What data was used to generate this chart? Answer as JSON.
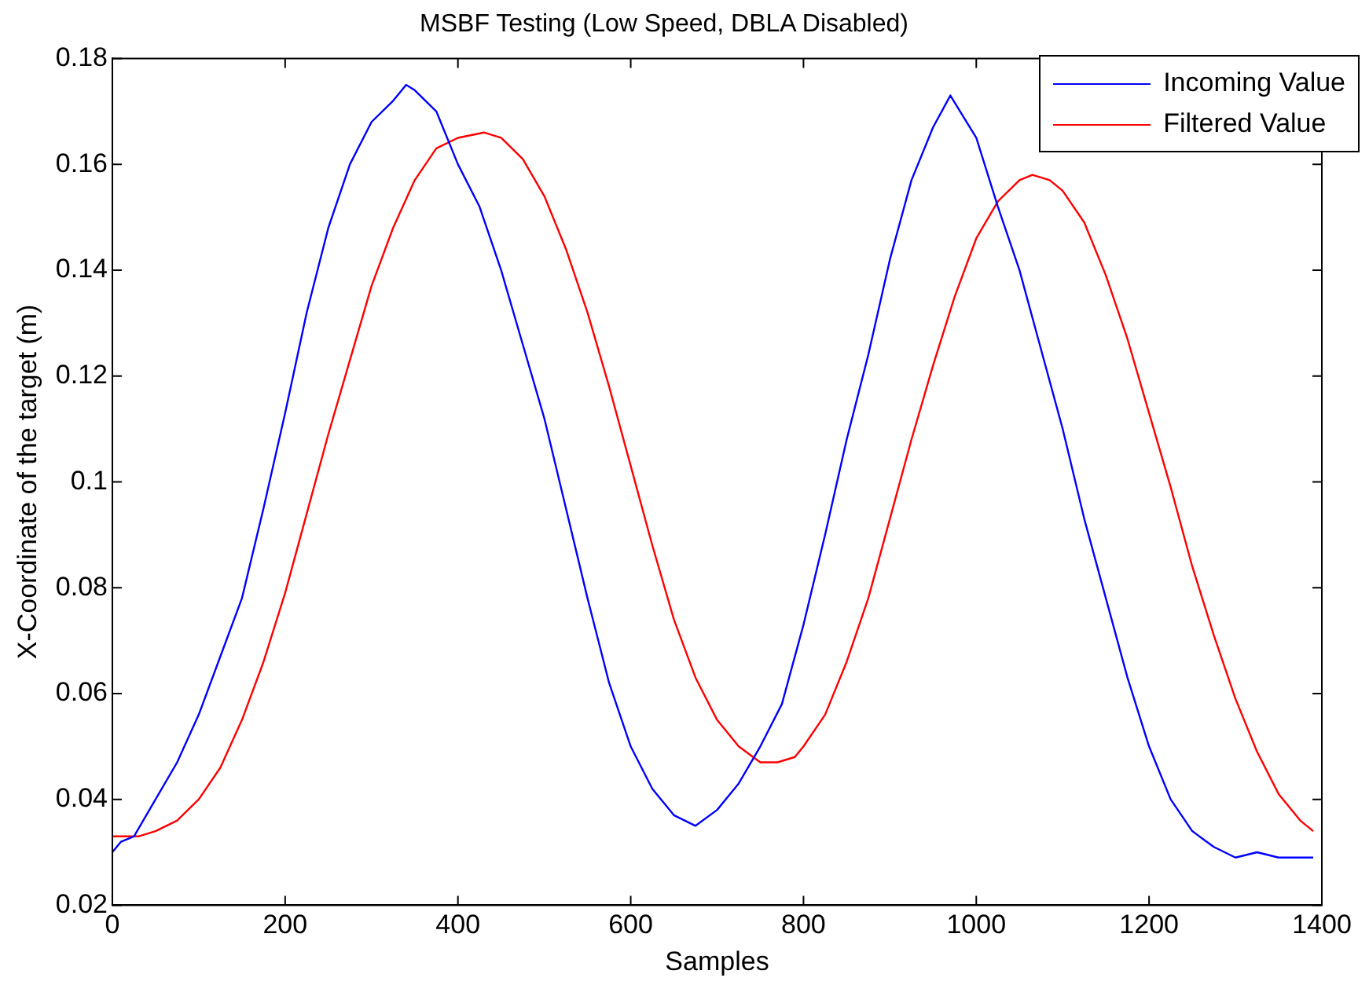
{
  "chart_data": {
    "type": "line",
    "title": "MSBF Testing (Low Speed, DBLA Disabled)",
    "xlabel": "Samples",
    "ylabel": "X-Coordinate of the target (m)",
    "xlim": [
      0,
      1400
    ],
    "xticks": [
      0,
      200,
      400,
      600,
      800,
      1000,
      1200,
      1400
    ],
    "ylim": [
      0.02,
      0.18
    ],
    "yticks": [
      0.02,
      0.04,
      0.06,
      0.08,
      0.1,
      0.12,
      0.14,
      0.16,
      0.18
    ],
    "grid": false,
    "legend": "top right",
    "marker": "none",
    "line_style": "solid",
    "series": [
      {
        "name": "Incoming Value",
        "color": "#0000ff",
        "x": [
          0,
          10,
          25,
          50,
          75,
          100,
          125,
          150,
          175,
          200,
          225,
          250,
          275,
          300,
          325,
          340,
          350,
          375,
          400,
          425,
          450,
          475,
          500,
          525,
          550,
          575,
          600,
          625,
          650,
          675,
          700,
          725,
          750,
          775,
          800,
          825,
          850,
          875,
          900,
          925,
          950,
          970,
          1000,
          1025,
          1050,
          1075,
          1100,
          1125,
          1150,
          1175,
          1200,
          1225,
          1250,
          1275,
          1300,
          1325,
          1350,
          1375,
          1390
        ],
        "values": [
          0.03,
          0.032,
          0.033,
          0.04,
          0.047,
          0.056,
          0.067,
          0.078,
          0.095,
          0.113,
          0.132,
          0.148,
          0.16,
          0.168,
          0.172,
          0.175,
          0.174,
          0.17,
          0.16,
          0.152,
          0.14,
          0.126,
          0.112,
          0.095,
          0.078,
          0.062,
          0.05,
          0.042,
          0.037,
          0.035,
          0.038,
          0.043,
          0.05,
          0.058,
          0.073,
          0.09,
          0.108,
          0.124,
          0.142,
          0.157,
          0.167,
          0.173,
          0.165,
          0.152,
          0.14,
          0.125,
          0.11,
          0.093,
          0.078,
          0.063,
          0.05,
          0.04,
          0.034,
          0.031,
          0.029,
          0.03,
          0.029,
          0.029,
          0.029
        ]
      },
      {
        "name": "Filtered Value",
        "color": "#ff0000",
        "x": [
          0,
          30,
          50,
          75,
          100,
          125,
          150,
          175,
          200,
          225,
          250,
          275,
          300,
          325,
          350,
          375,
          400,
          430,
          450,
          475,
          500,
          525,
          550,
          575,
          600,
          625,
          650,
          675,
          700,
          725,
          750,
          770,
          790,
          800,
          825,
          850,
          875,
          900,
          925,
          950,
          975,
          1000,
          1025,
          1050,
          1065,
          1085,
          1100,
          1125,
          1150,
          1175,
          1200,
          1225,
          1250,
          1275,
          1300,
          1325,
          1350,
          1375,
          1390
        ],
        "values": [
          0.033,
          0.033,
          0.034,
          0.036,
          0.04,
          0.046,
          0.055,
          0.066,
          0.079,
          0.094,
          0.109,
          0.123,
          0.137,
          0.148,
          0.157,
          0.163,
          0.165,
          0.166,
          0.165,
          0.161,
          0.154,
          0.144,
          0.132,
          0.118,
          0.103,
          0.088,
          0.074,
          0.063,
          0.055,
          0.05,
          0.047,
          0.047,
          0.048,
          0.05,
          0.056,
          0.066,
          0.078,
          0.093,
          0.108,
          0.122,
          0.135,
          0.146,
          0.153,
          0.157,
          0.158,
          0.157,
          0.155,
          0.149,
          0.139,
          0.127,
          0.113,
          0.099,
          0.084,
          0.071,
          0.059,
          0.049,
          0.041,
          0.036,
          0.034
        ]
      }
    ]
  }
}
